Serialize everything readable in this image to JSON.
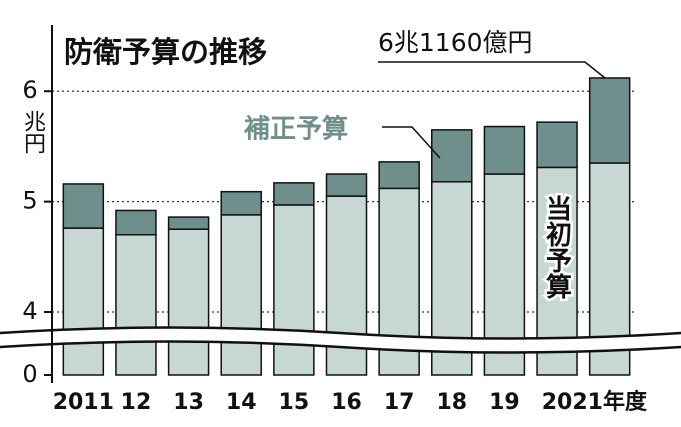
{
  "chart_data": {
    "type": "stacked_bar",
    "title": "防衛予算の推移",
    "y_label": "兆円",
    "annotation": "6兆1160億円",
    "categories": [
      "2011",
      "12",
      "13",
      "14",
      "15",
      "16",
      "17",
      "18",
      "19",
      "20",
      "21年度"
    ],
    "series": [
      {
        "name": "当初予算",
        "color": "#c6d7d4",
        "values": [
          4.76,
          4.7,
          4.75,
          4.88,
          4.97,
          5.05,
          5.12,
          5.18,
          5.25,
          5.31,
          5.35
        ]
      },
      {
        "name": "補正予算",
        "color": "#6e8f8b",
        "values": [
          0.4,
          0.22,
          0.11,
          0.21,
          0.2,
          0.2,
          0.24,
          0.47,
          0.43,
          0.41,
          0.77
        ]
      }
    ],
    "ylim": [
      0,
      6.6
    ],
    "yticks": [
      0,
      4,
      5,
      6
    ],
    "grid": true
  }
}
